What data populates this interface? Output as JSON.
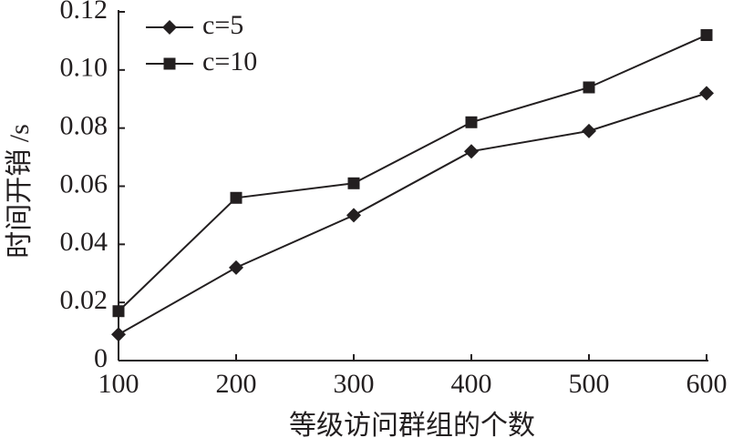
{
  "chart_data": {
    "type": "line",
    "xlabel": "等级访问群组的个数",
    "ylabel": "时间开销 /s",
    "x": [
      100,
      200,
      300,
      400,
      500,
      600
    ],
    "series": [
      {
        "name": "c=5",
        "color": "#231f20",
        "marker": "diamond",
        "values": [
          0.009,
          0.032,
          0.05,
          0.072,
          0.079,
          0.092
        ]
      },
      {
        "name": "c=10",
        "color": "#231f20",
        "marker": "square",
        "values": [
          0.017,
          0.056,
          0.061,
          0.082,
          0.094,
          0.112
        ]
      }
    ],
    "xlim": [
      100,
      600
    ],
    "xticks": [
      100,
      200,
      300,
      400,
      500,
      600
    ],
    "ylim": [
      0,
      0.12
    ],
    "yticks": [
      0,
      0.02,
      0.04,
      0.06,
      {
        "value": 0.1,
        "label": "0.10"
      },
      0.12,
      0.08
    ],
    "legend": "upper-left"
  }
}
